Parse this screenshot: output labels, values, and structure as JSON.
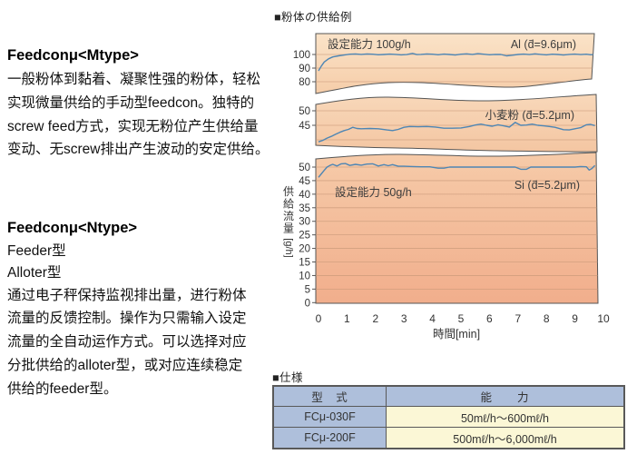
{
  "left_column": {
    "section1": {
      "heading": "Feedconμ<Mtype>",
      "body": "一般粉体到黏着、凝聚性强的粉体，轻松\n实现微量供给的手动型feedcon。独特的\nscrew feed方式，实现无粉位产生供给量\n变动、无screw排出产生波动的安定供给。"
    },
    "section2": {
      "heading": "Feedconμ<Ntype>",
      "models": "Feeder型\nAlloter型",
      "body": "通过电子秤保持监视排出量，进行粉体\n流量的反馈控制。操作为只需输入设定\n流量的全自动运作方式。可以选择对应\n分批供给的alloter型，或对应连续稳定\n供给的feeder型。"
    }
  },
  "chart_section": {
    "title": "■粉体の供給例"
  },
  "chart_data": {
    "type": "line",
    "xlabel": "時間[min]",
    "ylabel": "供給流量",
    "y_unit": "[g/h]",
    "x_range": [
      0,
      10
    ],
    "x_ticks": [
      0,
      1,
      2,
      3,
      4,
      5,
      6,
      7,
      8,
      9,
      10
    ],
    "panels": [
      {
        "name": "Al",
        "label": "Al (d̄=9.6μm)",
        "annotation": "設定能力 100g/h",
        "set_capacity": "100g/h",
        "y_ticks": [
          100,
          90,
          80
        ],
        "series": {
          "x": [
            0,
            0.1,
            0.2,
            0.35,
            0.5,
            0.7,
            0.9,
            1.1,
            1.3,
            1.5,
            1.7,
            1.9,
            2.1,
            2.3,
            2.5,
            2.7,
            2.9,
            3.1,
            3.3,
            3.45,
            3.6,
            3.8,
            4.0,
            4.2,
            4.4,
            4.6,
            4.8,
            5.0,
            5.2,
            5.4,
            5.6,
            5.8,
            6.0,
            6.2,
            6.4,
            6.6,
            6.8,
            7.0,
            7.2,
            7.4,
            7.6,
            7.8,
            8.0,
            8.2,
            8.4,
            8.6,
            8.8,
            9.0,
            9.2,
            9.4,
            9.55,
            9.7
          ],
          "y": [
            88,
            91.5,
            94.5,
            96.8,
            98.2,
            99,
            99.6,
            100.2,
            100.4,
            100.1,
            100.4,
            100.2,
            99.8,
            100,
            100.3,
            100.1,
            99.7,
            99.9,
            100.8,
            99.9,
            100.1,
            100.4,
            100.2,
            99.8,
            100.3,
            100,
            99.6,
            100.2,
            100.5,
            100.1,
            100.6,
            100.2,
            99.8,
            100.1,
            100,
            99,
            99.5,
            100,
            100.3,
            99.9,
            100.5,
            100.1,
            99.7,
            100.2,
            100,
            99.6,
            100.1,
            100.3,
            99.9,
            100.2,
            99.8,
            100
          ]
        }
      },
      {
        "name": "小麦粉",
        "label": "小麦粉 (d̄=5.2μm)",
        "annotation": "",
        "set_capacity": "",
        "y_ticks": [
          50,
          45
        ],
        "series": {
          "x": [
            0,
            0.15,
            0.3,
            0.45,
            0.6,
            0.75,
            0.9,
            1.05,
            1.2,
            1.35,
            1.5,
            1.8,
            2.1,
            2.4,
            2.6,
            2.8,
            3.0,
            3.2,
            3.5,
            3.8,
            4.1,
            4.4,
            4.7,
            5.0,
            5.3,
            5.5,
            5.7,
            5.9,
            6.1,
            6.3,
            6.5,
            6.7,
            6.9,
            7.1,
            7.3,
            7.5,
            7.7,
            7.9,
            8.1,
            8.3,
            8.6,
            8.8,
            9.0,
            9.2,
            9.4,
            9.55,
            9.7
          ],
          "y": [
            39.3,
            39.8,
            40.6,
            41.2,
            41.9,
            42.6,
            43.2,
            43.6,
            44.3,
            43.9,
            43.8,
            43.9,
            43.8,
            43.4,
            43.2,
            43.6,
            44.3,
            44.6,
            44.5,
            44.6,
            44.4,
            44,
            44,
            44.1,
            44.6,
            45.1,
            45.4,
            45,
            44.7,
            45.2,
            44.8,
            44.4,
            46,
            45,
            45.1,
            45.4,
            45,
            44.8,
            44.6,
            44.3,
            43.5,
            43.4,
            43.8,
            44.2,
            45.2,
            45.3,
            44.9
          ]
        }
      },
      {
        "name": "Si",
        "label": "Si (d̄=5.2μm)",
        "annotation": "設定能力 50g/h",
        "set_capacity": "50g/h",
        "y_ticks": [
          50,
          45,
          40,
          35,
          30,
          25,
          20,
          15,
          10,
          5,
          0
        ],
        "series": {
          "x": [
            0,
            0.1,
            0.2,
            0.3,
            0.4,
            0.5,
            0.65,
            0.8,
            0.95,
            1.1,
            1.3,
            1.5,
            1.7,
            1.9,
            2.1,
            2.3,
            2.45,
            2.6,
            2.8,
            3.0,
            3.3,
            3.6,
            3.9,
            4.2,
            4.4,
            4.6,
            5.0,
            5.5,
            6.0,
            6.5,
            6.9,
            7.1,
            7.3,
            7.45,
            8.0,
            8.5,
            9.0,
            9.2,
            9.4,
            9.5,
            9.6,
            9.7
          ],
          "y": [
            46.2,
            47.5,
            48.8,
            50,
            50.6,
            51,
            50.4,
            51.2,
            51.3,
            50.6,
            51,
            50.7,
            51.1,
            51.2,
            50.4,
            50.9,
            50.5,
            50.9,
            50.3,
            50.3,
            50.2,
            50.1,
            50.1,
            49.6,
            49.6,
            50,
            50,
            50,
            50,
            50,
            50,
            49.2,
            49.2,
            50,
            50,
            50,
            50,
            50.2,
            50.1,
            48.9,
            49.5,
            50.6
          ]
        }
      }
    ]
  },
  "spec_section": {
    "title": "■仕様",
    "table": {
      "headers": [
        "型　式",
        "能　　力"
      ],
      "rows": [
        {
          "model": "FCμ-030F",
          "capacity": "50mℓ/h～600mℓ/h"
        },
        {
          "model": "FCμ-200F",
          "capacity": "500mℓ/h～6,000mℓ/h"
        }
      ]
    }
  },
  "colors": {
    "line": "#4E86B4",
    "grid": "#C89878",
    "panel_border": "#555555",
    "panel_gradients": [
      [
        "#FAE3C8",
        "#F6CDA9"
      ],
      [
        "#F8D8BA",
        "#F4C6A2"
      ],
      [
        "#F6CBA9",
        "#F1AE8C"
      ]
    ],
    "table_header_bg": "#AEBFDB",
    "table_value_bg": "#FBF7D6",
    "text": "#3d3d3d"
  }
}
